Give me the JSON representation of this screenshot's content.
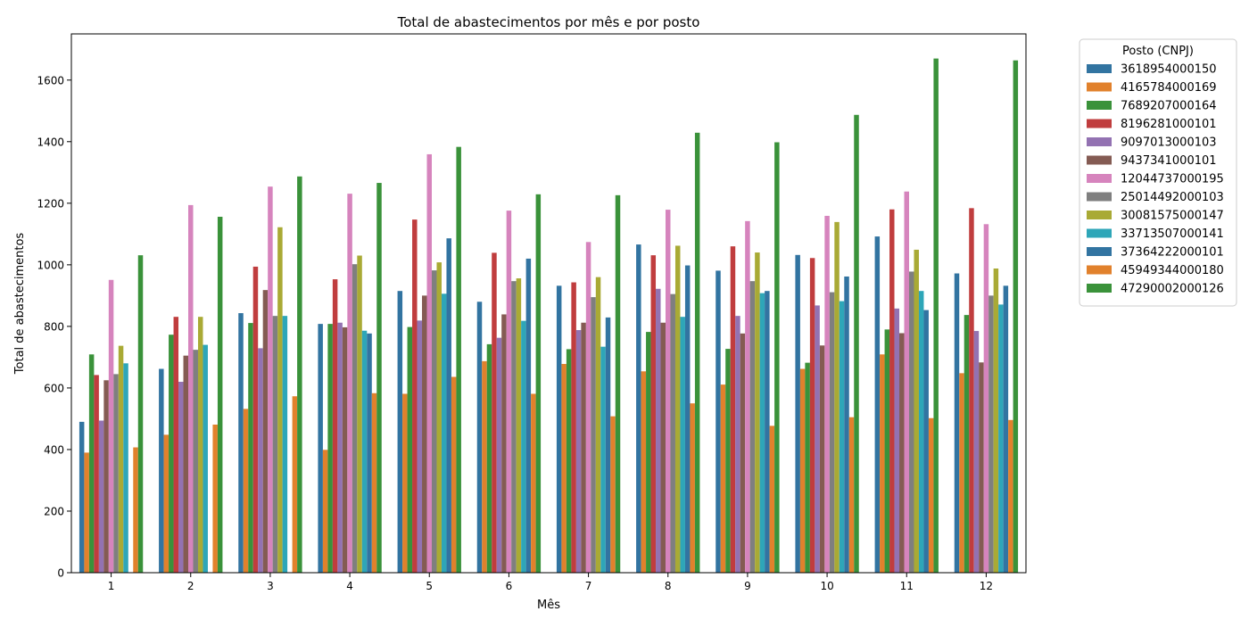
{
  "chart_data": {
    "type": "bar",
    "title": "Total de abastecimentos por mês e por posto",
    "xlabel": "Mês",
    "ylabel": "Total de abastecimentos",
    "ylim": [
      0,
      1750
    ],
    "yticks": [
      0,
      200,
      400,
      600,
      800,
      1000,
      1200,
      1400,
      1600
    ],
    "categories": [
      "1",
      "2",
      "3",
      "4",
      "5",
      "6",
      "7",
      "8",
      "9",
      "10",
      "11",
      "12"
    ],
    "legend": {
      "title": "Posto (CNPJ)",
      "placement": "outside-top-right"
    },
    "series": [
      {
        "name": "3618954000150",
        "color": "#3274a1",
        "values": [
          490,
          662,
          843,
          808,
          915,
          880,
          932,
          1066,
          981,
          1032,
          1092,
          972
        ]
      },
      {
        "name": "4165784000169",
        "color": "#e1812c",
        "values": [
          390,
          448,
          532,
          399,
          581,
          687,
          678,
          654,
          611,
          662,
          709,
          648
        ]
      },
      {
        "name": "7689207000164",
        "color": "#3a923a",
        "values": [
          709,
          773,
          811,
          808,
          798,
          742,
          726,
          782,
          727,
          682,
          790,
          837
        ]
      },
      {
        "name": "8196281000101",
        "color": "#c03d3e",
        "values": [
          642,
          831,
          994,
          953,
          1147,
          1039,
          943,
          1031,
          1060,
          1022,
          1180,
          1184
        ]
      },
      {
        "name": "9097013000103",
        "color": "#9372b2",
        "values": [
          494,
          620,
          729,
          812,
          819,
          763,
          788,
          922,
          834,
          868,
          858,
          785
        ]
      },
      {
        "name": "9437341000101",
        "color": "#845b53",
        "values": [
          625,
          705,
          918,
          797,
          900,
          839,
          812,
          812,
          777,
          738,
          778,
          683
        ]
      },
      {
        "name": "12044737000195",
        "color": "#d684bd",
        "values": [
          951,
          1194,
          1254,
          1231,
          1359,
          1176,
          1074,
          1179,
          1142,
          1159,
          1238,
          1132
        ]
      },
      {
        "name": "25014492000103",
        "color": "#7f7f7f",
        "values": [
          645,
          724,
          834,
          1002,
          982,
          947,
          895,
          905,
          947,
          911,
          978,
          900
        ]
      },
      {
        "name": "30081575000147",
        "color": "#a9aa35",
        "values": [
          737,
          831,
          1122,
          1030,
          1008,
          956,
          960,
          1062,
          1040,
          1139,
          1049,
          988
        ]
      },
      {
        "name": "33713507000141",
        "color": "#2ea6b8",
        "values": [
          680,
          740,
          834,
          786,
          906,
          818,
          734,
          831,
          908,
          882,
          915,
          871
        ]
      },
      {
        "name": "37364222000101",
        "color": "#3274a1",
        "values": [
          0,
          0,
          0,
          777,
          1086,
          1020,
          829,
          998,
          915,
          962,
          853,
          932
        ]
      },
      {
        "name": "45949344000180",
        "color": "#e1812c",
        "values": [
          407,
          481,
          573,
          583,
          636,
          581,
          508,
          550,
          477,
          505,
          502,
          496
        ]
      },
      {
        "name": "47290002000126",
        "color": "#3a923a",
        "values": [
          1031,
          1156,
          1287,
          1266,
          1383,
          1229,
          1226,
          1429,
          1398,
          1487,
          1670,
          1664
        ]
      }
    ]
  }
}
